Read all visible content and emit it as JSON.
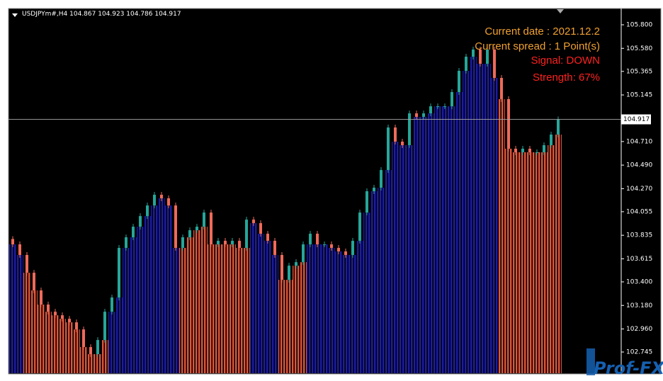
{
  "chart_data": {
    "type": "candlestick",
    "title": "USDJPYm#,H4  104.867 104.923 104.786 104.917",
    "annotations": [
      {
        "text": "Current date : 2021.12.2",
        "color": "#f0a030"
      },
      {
        "text": "Current spread : 1 Point(s)",
        "color": "#f0a030"
      },
      {
        "text": "Signal: DOWN",
        "color": "#ff2020"
      },
      {
        "text": "Strength: 67%",
        "color": "#ff2020"
      }
    ],
    "watermark": "Prof-FX",
    "current_price": 104.917,
    "ylim": [
      102.547,
      105.952
    ],
    "yticks": [
      {
        "value": 105.8,
        "label": "105.800"
      },
      {
        "value": 105.58,
        "label": "105.580"
      },
      105.365,
      105.145,
      {
        "value": 104.71,
        "label": "104.710"
      },
      {
        "value": 104.49,
        "label": "104.490"
      },
      {
        "value": 104.27,
        "label": "104.270"
      },
      104.055,
      103.835,
      103.615,
      {
        "value": 103.4,
        "label": "103.400"
      },
      {
        "value": 103.18,
        "label": "103.180"
      },
      {
        "value": 102.96,
        "label": "102.960"
      },
      102.745
    ],
    "up_color": "#26a69a",
    "down_color": "#ef6a5a",
    "trend_colors": {
      "up": "#1c1ca8",
      "down": "#e0553a"
    },
    "open": [
      103.8,
      103.75,
      103.651,
      103.485,
      103.32,
      103.188,
      103.121,
      103.088,
      103.055,
      103.022,
      102.956,
      102.791,
      102.725,
      102.857,
      103.121,
      103.254,
      103.717,
      103.816,
      103.915,
      104.014,
      104.113,
      104.213,
      104.18,
      104.113,
      103.717,
      103.816,
      103.882,
      103.915,
      104.047,
      103.75,
      103.783,
      103.75,
      103.783,
      103.717,
      103.981,
      103.948,
      103.849,
      103.783,
      103.651,
      103.419,
      103.551,
      103.584,
      103.75,
      103.849,
      103.75,
      103.75,
      103.717,
      103.684,
      103.651,
      103.783,
      104.047,
      104.246,
      104.279,
      104.444,
      104.841,
      104.709,
      104.676,
      104.973,
      104.94,
      104.973,
      105.039,
      105.039,
      105.039,
      105.172,
      105.37,
      105.502,
      105.569,
      105.436,
      105.569,
      105.304,
      105.106,
      104.643,
      104.61,
      104.643,
      104.61,
      104.61,
      104.676,
      104.775
    ],
    "close": [
      103.75,
      103.651,
      103.485,
      103.32,
      103.188,
      103.121,
      103.088,
      103.055,
      103.022,
      102.956,
      102.791,
      102.725,
      102.857,
      103.121,
      103.254,
      103.717,
      103.816,
      103.915,
      104.014,
      104.113,
      104.213,
      104.18,
      104.113,
      103.717,
      103.816,
      103.882,
      103.915,
      104.047,
      103.75,
      103.783,
      103.75,
      103.783,
      103.717,
      103.981,
      103.948,
      103.849,
      103.783,
      103.651,
      103.419,
      103.551,
      103.584,
      103.75,
      103.849,
      103.75,
      103.75,
      103.717,
      103.684,
      103.651,
      103.783,
      104.047,
      104.246,
      104.279,
      104.444,
      104.841,
      104.709,
      104.676,
      104.973,
      104.94,
      104.973,
      105.039,
      105.039,
      105.039,
      105.172,
      105.37,
      105.502,
      105.569,
      105.436,
      105.569,
      105.304,
      105.106,
      104.643,
      104.61,
      104.643,
      104.61,
      104.61,
      104.676,
      104.775,
      104.917
    ],
    "trend": [
      "up",
      "up",
      "down",
      "down",
      "down",
      "down",
      "down",
      "down",
      "down",
      "down",
      "down",
      "down",
      "down",
      "down",
      "up",
      "up",
      "up",
      "up",
      "up",
      "up",
      "up",
      "up",
      "up",
      "up",
      "down",
      "down",
      "down",
      "down",
      "down",
      "down",
      "down",
      "down",
      "down",
      "down",
      "up",
      "up",
      "up",
      "up",
      "down",
      "down",
      "down",
      "down",
      "up",
      "up",
      "up",
      "up",
      "up",
      "up",
      "up",
      "up",
      "up",
      "up",
      "up",
      "up",
      "up",
      "up",
      "up",
      "up",
      "up",
      "up",
      "up",
      "up",
      "up",
      "up",
      "up",
      "up",
      "up",
      "up",
      "up",
      "down",
      "down",
      "down",
      "down",
      "down",
      "down",
      "down",
      "down",
      "down"
    ]
  }
}
